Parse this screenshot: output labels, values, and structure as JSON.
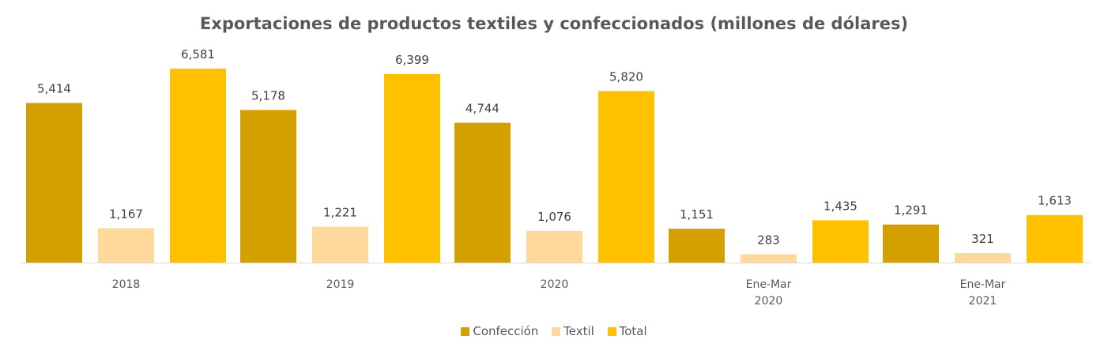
{
  "chart_data": {
    "type": "bar",
    "title": "Exportaciones de productos textiles y confeccionados (millones de dólares)",
    "categories": [
      [
        "2018"
      ],
      [
        "2019"
      ],
      [
        "2020"
      ],
      [
        "Ene-Mar",
        "2020"
      ],
      [
        "Ene-Mar",
        "2021"
      ]
    ],
    "series": [
      {
        "name": "Confección",
        "color": "#D4A000",
        "values": [
          5414,
          5178,
          4744,
          1151,
          1291
        ],
        "labels": [
          "5,414",
          "5,178",
          "4,744",
          "1,151",
          "1,291"
        ]
      },
      {
        "name": "Textil",
        "color": "#FFD89B",
        "values": [
          1167,
          1221,
          1076,
          283,
          321
        ],
        "labels": [
          "1,167",
          "1,221",
          "1,076",
          "283",
          "321"
        ]
      },
      {
        "name": "Total",
        "color": "#FFC000",
        "values": [
          6581,
          6399,
          5820,
          1435,
          1613
        ],
        "labels": [
          "6,581",
          "6,399",
          "5,820",
          "1,435",
          "1,613"
        ]
      }
    ],
    "ylim": [
      0,
      7000
    ],
    "grid": false,
    "legend": "bottom"
  }
}
